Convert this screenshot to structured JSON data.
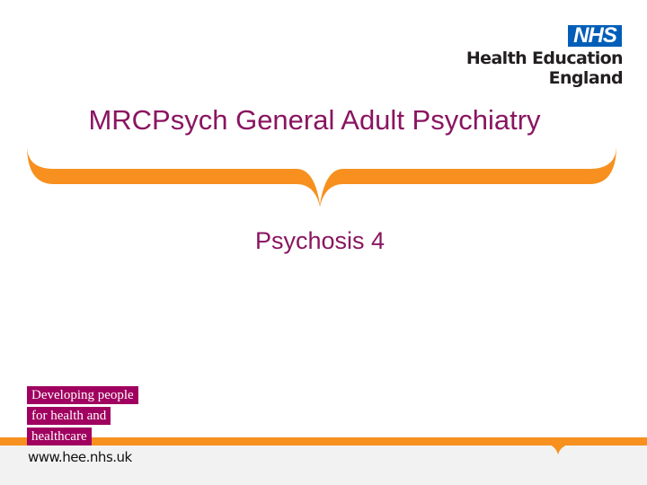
{
  "logo": {
    "nhs": "NHS",
    "organisation": "Health Education England"
  },
  "slide": {
    "title": "MRCPsych General Adult Psychiatry",
    "subtitle": "Psychosis 4"
  },
  "footer": {
    "tagline": [
      "Developing people",
      "for health and",
      "healthcare"
    ],
    "url": "www.hee.nhs.uk"
  },
  "colors": {
    "accent_orange": "#f7901e",
    "title_purple": "#8a1560",
    "tag_magenta": "#a0005f",
    "nhs_blue": "#005eb8"
  }
}
